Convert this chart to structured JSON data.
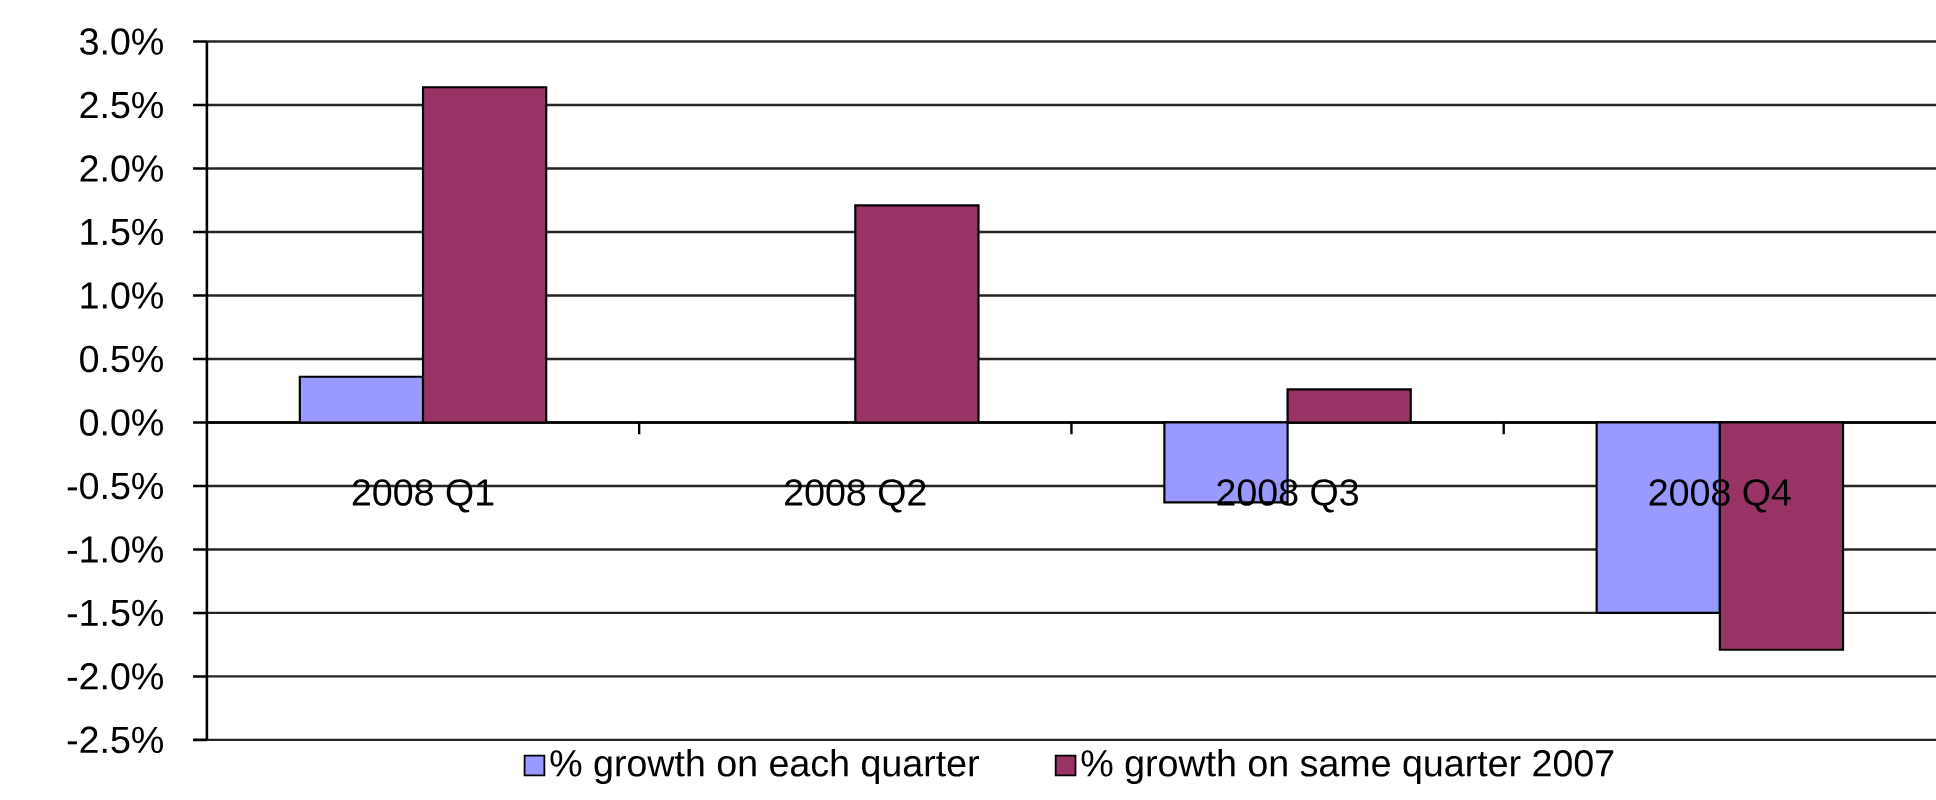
{
  "chart_data": {
    "type": "bar",
    "categories": [
      "2008 Q1",
      "2008 Q2",
      "2008 Q3",
      "2008 Q4"
    ],
    "series": [
      {
        "name": "% growth on each quarter",
        "color": "#9999ff",
        "values": [
          0.36,
          null,
          -0.63,
          -1.5
        ]
      },
      {
        "name": "% growth on same quarter 2007",
        "color": "#993366",
        "values": [
          2.64,
          1.71,
          0.26,
          -1.79
        ]
      }
    ],
    "ylim": [
      -2.5,
      3.0
    ],
    "yticks": [
      {
        "value": -2.5,
        "label": "-2.5%"
      },
      {
        "value": -2.0,
        "label": "-2.0%"
      },
      {
        "value": -1.5,
        "label": "-1.5%"
      },
      {
        "value": -1.0,
        "label": "-1.0%"
      },
      {
        "value": -0.5,
        "label": "-0.5%"
      },
      {
        "value": 0.0,
        "label": "0.0%"
      },
      {
        "value": 0.5,
        "label": "0.5%"
      },
      {
        "value": 1.0,
        "label": "1.0%"
      },
      {
        "value": 1.5,
        "label": "1.5%"
      },
      {
        "value": 2.0,
        "label": "2.0%"
      },
      {
        "value": 2.5,
        "label": "2.5%"
      },
      {
        "value": 3.0,
        "label": "3.0%"
      }
    ],
    "grid": "y",
    "legend": "bottom"
  }
}
